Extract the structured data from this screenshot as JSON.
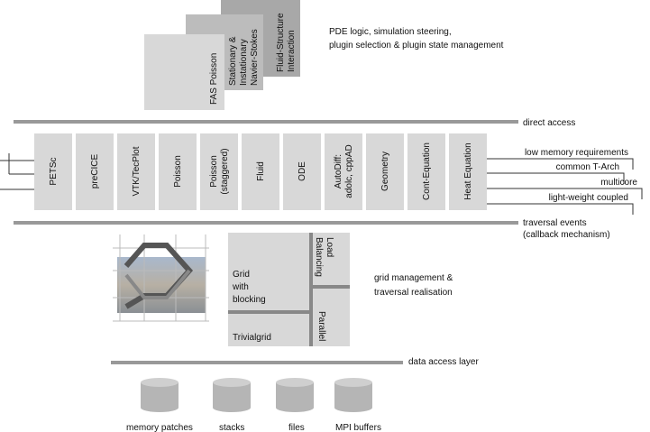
{
  "top_layer": {
    "plugins": [
      [
        "FAS Poisson"
      ],
      [
        "Stationary &",
        "Instationary",
        "Navier-Stokes"
      ],
      [
        "Fluid-Structure",
        "Interaction"
      ]
    ],
    "description": [
      "PDE logic, simulation steering,",
      "plugin selection & plugin state management"
    ]
  },
  "direct_access": "direct access",
  "component_layer": {
    "components": [
      [
        "PETSc"
      ],
      [
        "preCICE"
      ],
      [
        "VTK/TecPlot"
      ],
      [
        "Poisson"
      ],
      [
        "Poisson",
        "(staggered)"
      ],
      [
        "Fluid"
      ],
      [
        "ODE"
      ],
      [
        "AutoDiff:",
        "adolc, cppAD"
      ],
      [
        "Geometry"
      ],
      [
        "Cont-Equation"
      ],
      [
        "Heat Equation"
      ]
    ],
    "properties": [
      "low memory requirements",
      "common T-Arch",
      "multicore",
      "light-weight coupled"
    ]
  },
  "traversal_events": [
    "traversal events",
    "(callback mechanism)"
  ],
  "grid_layer": {
    "grid_blocking": [
      "Grid",
      "with",
      "blocking"
    ],
    "trivialgrid": "Trivialgrid",
    "load_balancing": [
      "Load",
      "Balancing"
    ],
    "parallel": "Parallel",
    "description": [
      "grid management &",
      "traversal realisation"
    ]
  },
  "data_access_layer": "data access layer",
  "storage": [
    "memory patches",
    "stacks",
    "files",
    "MPI buffers"
  ]
}
